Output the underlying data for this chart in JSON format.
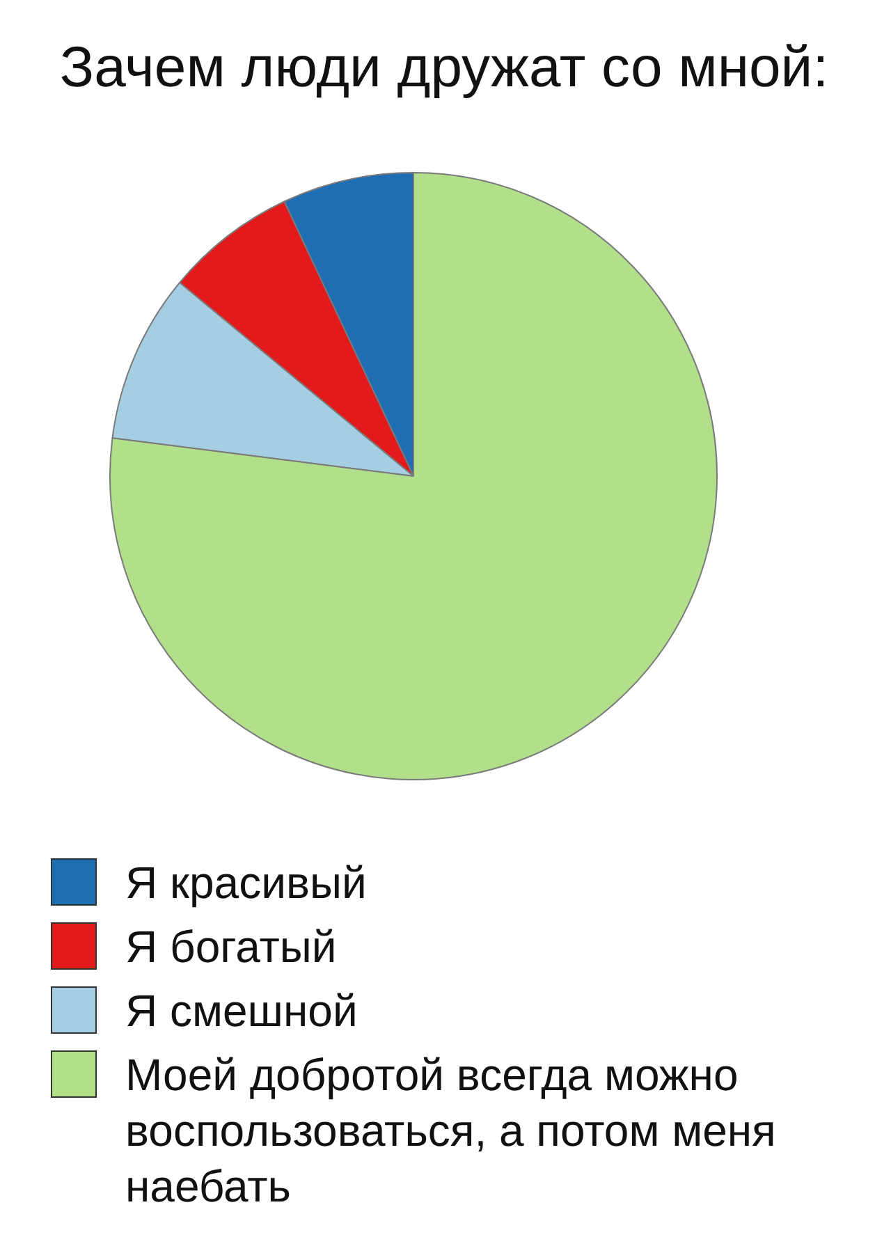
{
  "chart_data": {
    "type": "pie",
    "title": "Зачем люди дружат со мной:",
    "categories": [
      "Я красивый",
      "Я богатый",
      "Я смешной",
      "Моей добротой всегда можно воспользоваться, а потом меня наебать"
    ],
    "values": [
      7,
      7,
      9,
      77
    ],
    "colors": [
      "#1f6eb4",
      "#e31a1c",
      "#a6cee3",
      "#b2df8a"
    ],
    "legend": "bottom"
  }
}
